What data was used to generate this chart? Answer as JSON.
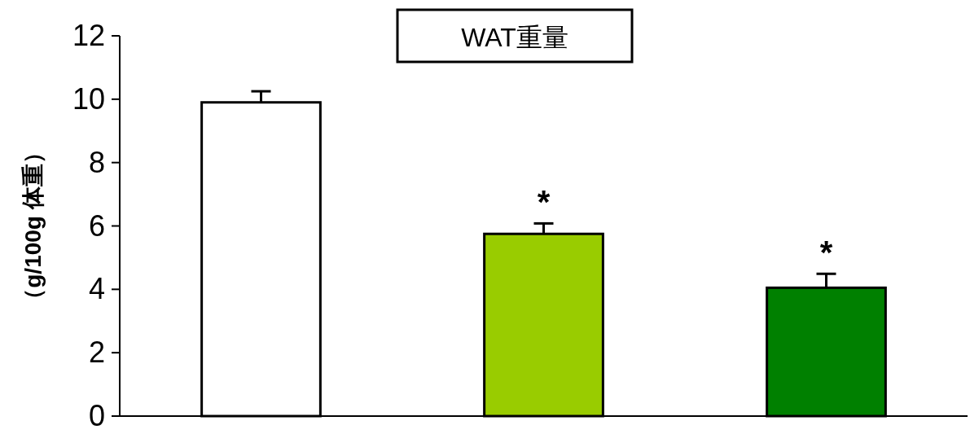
{
  "chart_data": {
    "type": "bar",
    "title": "WAT重量",
    "ylabel": "（g/100g 体重）",
    "categories": [
      null,
      null,
      null
    ],
    "values": [
      9.9,
      5.75,
      4.05
    ],
    "colors": [
      "#ffffff",
      "#99cc00",
      "#008000"
    ],
    "errors": [
      0.35,
      0.33,
      0.44
    ],
    "value_labels": [
      null,
      "*",
      "*"
    ],
    "ylim": [
      0,
      12
    ],
    "yticks": [
      0,
      2,
      4,
      6,
      8,
      10,
      12
    ],
    "grid": false
  }
}
